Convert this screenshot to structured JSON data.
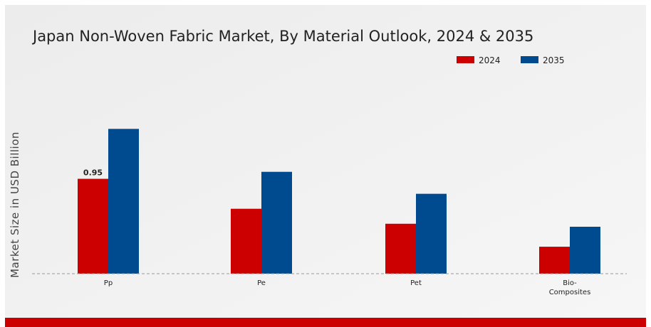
{
  "chart_data": {
    "type": "bar",
    "title": "Japan Non-Woven Fabric Market, By Material Outlook, 2024 & 2035",
    "xlabel": "",
    "ylabel": "Market Size in USD Billion",
    "categories": [
      [
        "Pp"
      ],
      [
        "Pe"
      ],
      [
        "Pet"
      ],
      [
        "Bio-",
        "Composites"
      ]
    ],
    "series": [
      {
        "name": "2024",
        "color": "#cc0000",
        "values": [
          0.95,
          0.65,
          0.5,
          0.27
        ]
      },
      {
        "name": "2035",
        "color": "#004a8f",
        "values": [
          1.45,
          1.02,
          0.8,
          0.47
        ]
      }
    ],
    "data_labels": [
      {
        "series": 0,
        "category": 0,
        "text": "0.95"
      }
    ],
    "ylim": [
      0,
      2.1
    ],
    "grid": false,
    "legend_position": "top-right"
  }
}
